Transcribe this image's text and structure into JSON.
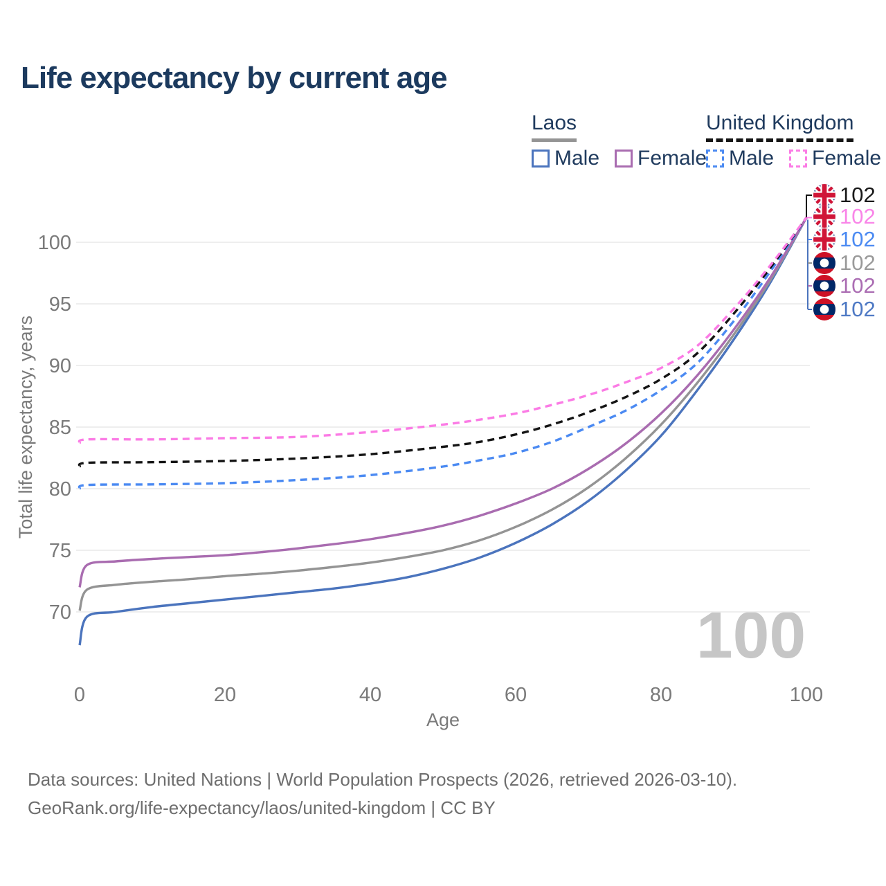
{
  "title": "Life expectancy by current age",
  "legend": {
    "groups": [
      {
        "country": "Laos",
        "line_color": "#949494",
        "line_style": "solid",
        "items": [
          {
            "label": "Male",
            "color": "#4b74bd",
            "style": "solid"
          },
          {
            "label": "Female",
            "color": "#a96cb0",
            "style": "solid"
          }
        ]
      },
      {
        "country": "United Kingdom",
        "line_color": "#141414",
        "line_style": "dashed",
        "items": [
          {
            "label": "Male",
            "color": "#4b8af2",
            "style": "dashed"
          },
          {
            "label": "Female",
            "color": "#fb7be5",
            "style": "dashed"
          }
        ]
      }
    ]
  },
  "chart_data": {
    "type": "line",
    "title": "Life expectancy by current age",
    "xlabel": "Age",
    "ylabel": "Total life expectancy, years",
    "xlim": [
      0,
      100
    ],
    "ylim": [
      66,
      103
    ],
    "xticks": [
      0,
      20,
      40,
      60,
      80,
      100
    ],
    "yticks": [
      70,
      75,
      80,
      85,
      90,
      95,
      100
    ],
    "grid": "horizontal-only",
    "gridline_color": "#e9e9e9",
    "tick_label_color": "#7a7a7a",
    "watermark": "100",
    "watermark_color": "#c6c6c6",
    "legend_position": "top-right",
    "series": [
      {
        "id": "laos_male",
        "name": "Laos Male",
        "country": "Laos",
        "flag": "laos",
        "color": "#4b74bd",
        "dash": false,
        "end_value": 102,
        "points": [
          [
            0,
            67.3
          ],
          [
            1,
            69.6
          ],
          [
            5,
            70.0
          ],
          [
            10,
            70.4
          ],
          [
            15,
            70.7
          ],
          [
            20,
            71.0
          ],
          [
            25,
            71.3
          ],
          [
            30,
            71.6
          ],
          [
            35,
            71.9
          ],
          [
            40,
            72.3
          ],
          [
            45,
            72.8
          ],
          [
            50,
            73.5
          ],
          [
            55,
            74.4
          ],
          [
            60,
            75.6
          ],
          [
            65,
            77.1
          ],
          [
            70,
            79.0
          ],
          [
            75,
            81.4
          ],
          [
            80,
            84.3
          ],
          [
            85,
            88.0
          ],
          [
            90,
            92.1
          ],
          [
            95,
            96.7
          ],
          [
            100,
            102
          ]
        ]
      },
      {
        "id": "laos_total",
        "name": "Laos Total",
        "country": "Laos",
        "flag": "laos",
        "color": "#949494",
        "dash": false,
        "end_value": 102,
        "points": [
          [
            0,
            70.1
          ],
          [
            1,
            71.8
          ],
          [
            5,
            72.2
          ],
          [
            10,
            72.45
          ],
          [
            15,
            72.65
          ],
          [
            20,
            72.9
          ],
          [
            25,
            73.1
          ],
          [
            30,
            73.35
          ],
          [
            35,
            73.65
          ],
          [
            40,
            74.0
          ],
          [
            45,
            74.45
          ],
          [
            50,
            75.0
          ],
          [
            55,
            75.8
          ],
          [
            60,
            76.9
          ],
          [
            65,
            78.3
          ],
          [
            70,
            80.1
          ],
          [
            75,
            82.4
          ],
          [
            80,
            85.2
          ],
          [
            85,
            88.6
          ],
          [
            90,
            92.5
          ],
          [
            95,
            96.9
          ],
          [
            100,
            102
          ]
        ]
      },
      {
        "id": "laos_female",
        "name": "Laos Female",
        "country": "Laos",
        "flag": "laos",
        "color": "#a96cb0",
        "dash": false,
        "end_value": 102,
        "points": [
          [
            0,
            72.0
          ],
          [
            1,
            73.8
          ],
          [
            5,
            74.1
          ],
          [
            10,
            74.3
          ],
          [
            15,
            74.45
          ],
          [
            20,
            74.6
          ],
          [
            25,
            74.85
          ],
          [
            30,
            75.15
          ],
          [
            35,
            75.5
          ],
          [
            40,
            75.9
          ],
          [
            45,
            76.4
          ],
          [
            50,
            77.0
          ],
          [
            55,
            77.8
          ],
          [
            60,
            78.8
          ],
          [
            65,
            80.0
          ],
          [
            70,
            81.6
          ],
          [
            75,
            83.6
          ],
          [
            80,
            86.1
          ],
          [
            85,
            89.2
          ],
          [
            90,
            92.9
          ],
          [
            95,
            97.1
          ],
          [
            100,
            102
          ]
        ]
      },
      {
        "id": "uk_male",
        "name": "United Kingdom Male",
        "country": "United Kingdom",
        "flag": "uk",
        "color": "#4b8af2",
        "dash": true,
        "end_value": 102,
        "points": [
          [
            0,
            80.0
          ],
          [
            1,
            80.3
          ],
          [
            10,
            80.35
          ],
          [
            20,
            80.45
          ],
          [
            30,
            80.7
          ],
          [
            40,
            81.1
          ],
          [
            50,
            81.8
          ],
          [
            55,
            82.3
          ],
          [
            60,
            82.9
          ],
          [
            65,
            83.8
          ],
          [
            70,
            85.0
          ],
          [
            75,
            86.3
          ],
          [
            80,
            88.0
          ],
          [
            85,
            90.2
          ],
          [
            90,
            93.6
          ],
          [
            95,
            97.6
          ],
          [
            100,
            102
          ]
        ]
      },
      {
        "id": "uk_total",
        "name": "United Kingdom Total",
        "country": "United Kingdom",
        "flag": "uk",
        "color": "#141414",
        "dash": true,
        "end_value": 102,
        "points": [
          [
            0,
            81.8
          ],
          [
            1,
            82.1
          ],
          [
            10,
            82.15
          ],
          [
            20,
            82.25
          ],
          [
            30,
            82.45
          ],
          [
            40,
            82.8
          ],
          [
            50,
            83.4
          ],
          [
            55,
            83.8
          ],
          [
            60,
            84.4
          ],
          [
            65,
            85.2
          ],
          [
            70,
            86.2
          ],
          [
            75,
            87.4
          ],
          [
            80,
            88.9
          ],
          [
            85,
            91.0
          ],
          [
            90,
            94.2
          ],
          [
            95,
            97.9
          ],
          [
            100,
            102
          ]
        ]
      },
      {
        "id": "uk_female",
        "name": "United Kingdom Female",
        "country": "United Kingdom",
        "flag": "uk",
        "color": "#fb7be5",
        "dash": true,
        "end_value": 102,
        "points": [
          [
            0,
            83.7
          ],
          [
            1,
            84.0
          ],
          [
            10,
            84.0
          ],
          [
            20,
            84.1
          ],
          [
            30,
            84.2
          ],
          [
            40,
            84.6
          ],
          [
            50,
            85.2
          ],
          [
            55,
            85.6
          ],
          [
            60,
            86.1
          ],
          [
            65,
            86.8
          ],
          [
            70,
            87.6
          ],
          [
            75,
            88.6
          ],
          [
            80,
            89.8
          ],
          [
            85,
            91.6
          ],
          [
            90,
            94.6
          ],
          [
            95,
            98.1
          ],
          [
            100,
            102
          ]
        ]
      }
    ],
    "end_label_rows": [
      {
        "series": "uk_total",
        "flag": "uk",
        "text": "102",
        "text_color": "#1a1a1a"
      },
      {
        "series": "uk_female",
        "flag": "uk",
        "text": "102",
        "text_color": "#f985e8"
      },
      {
        "series": "uk_male",
        "flag": "uk",
        "text": "102",
        "text_color": "#4b8af2"
      },
      {
        "series": "laos_total",
        "flag": "laos",
        "text": "102",
        "text_color": "#9a9a9a"
      },
      {
        "series": "laos_female",
        "flag": "laos",
        "text": "102",
        "text_color": "#ab6db3"
      },
      {
        "series": "laos_male",
        "flag": "laos",
        "text": "102",
        "text_color": "#4e79c4"
      }
    ],
    "flag_colors": {
      "uk_blue": "#20418d",
      "uk_red": "#d01538",
      "uk_white": "#ffffff",
      "laos_red": "#ce1126",
      "laos_blue": "#002868",
      "laos_white": "#ffffff"
    }
  },
  "footer": {
    "line1": "Data sources: United Nations | World Population Prospects (2026, retrieved 2026-03-10).",
    "line2": "GeoRank.org/life-expectancy/laos/united-kingdom | CC BY"
  }
}
